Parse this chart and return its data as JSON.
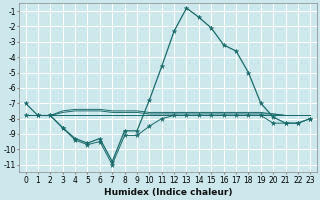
{
  "xlabel": "Humidex (Indice chaleur)",
  "bg_color": "#cce8ec",
  "grid_color": "#ffffff",
  "line_color": "#1a6b6b",
  "x": [
    0,
    1,
    2,
    3,
    4,
    5,
    6,
    7,
    8,
    9,
    10,
    11,
    12,
    13,
    14,
    15,
    16,
    17,
    18,
    19,
    20,
    21,
    22,
    23
  ],
  "line_main": [
    -7.0,
    -7.8,
    -7.8,
    -8.6,
    -9.3,
    -9.6,
    -9.3,
    -10.8,
    -8.8,
    -8.8,
    -6.8,
    -4.6,
    -2.3,
    -0.8,
    -1.4,
    -2.1,
    -3.2,
    -3.6,
    -5.0,
    -7.0,
    -7.9,
    -8.3,
    -8.3,
    -8.0
  ],
  "line_upper1": [
    -7.8,
    -7.8,
    -7.8,
    -7.8,
    -7.8,
    -7.8,
    -7.8,
    -7.8,
    -7.8,
    -7.8,
    -7.8,
    -7.8,
    -7.8,
    -7.8,
    -7.8,
    -7.8,
    -7.8,
    -7.8,
    -7.8,
    -7.8,
    -7.8,
    -7.8,
    -7.8,
    -7.8
  ],
  "line_upper2": [
    -7.8,
    -7.8,
    -7.8,
    -7.6,
    -7.5,
    -7.5,
    -7.5,
    -7.6,
    -7.6,
    -7.6,
    -7.7,
    -7.7,
    -7.7,
    -7.7,
    -7.7,
    -7.7,
    -7.7,
    -7.7,
    -7.7,
    -7.7,
    -7.7,
    -7.8,
    -7.8,
    -7.8
  ],
  "line_upper3": [
    -7.8,
    -7.8,
    -7.8,
    -7.5,
    -7.4,
    -7.4,
    -7.4,
    -7.5,
    -7.5,
    -7.5,
    -7.6,
    -7.6,
    -7.6,
    -7.6,
    -7.6,
    -7.6,
    -7.6,
    -7.6,
    -7.6,
    -7.6,
    -7.7,
    -7.8,
    -7.8,
    -7.8
  ],
  "line_lower": [
    -7.8,
    -7.8,
    -7.8,
    -8.6,
    -9.4,
    -9.7,
    -9.5,
    -11.0,
    -9.1,
    -9.1,
    -8.5,
    -8.0,
    -7.8,
    -7.8,
    -7.8,
    -7.8,
    -7.8,
    -7.8,
    -7.8,
    -7.8,
    -8.3,
    -8.3,
    -8.3,
    -8.0
  ],
  "ylim": [
    -11.5,
    -0.5
  ],
  "xlim": [
    -0.5,
    23.5
  ],
  "yticks": [
    -11,
    -10,
    -9,
    -8,
    -7,
    -6,
    -5,
    -4,
    -3,
    -2,
    -1
  ],
  "xticks": [
    0,
    1,
    2,
    3,
    4,
    5,
    6,
    7,
    8,
    9,
    10,
    11,
    12,
    13,
    14,
    15,
    16,
    17,
    18,
    19,
    20,
    21,
    22,
    23
  ]
}
